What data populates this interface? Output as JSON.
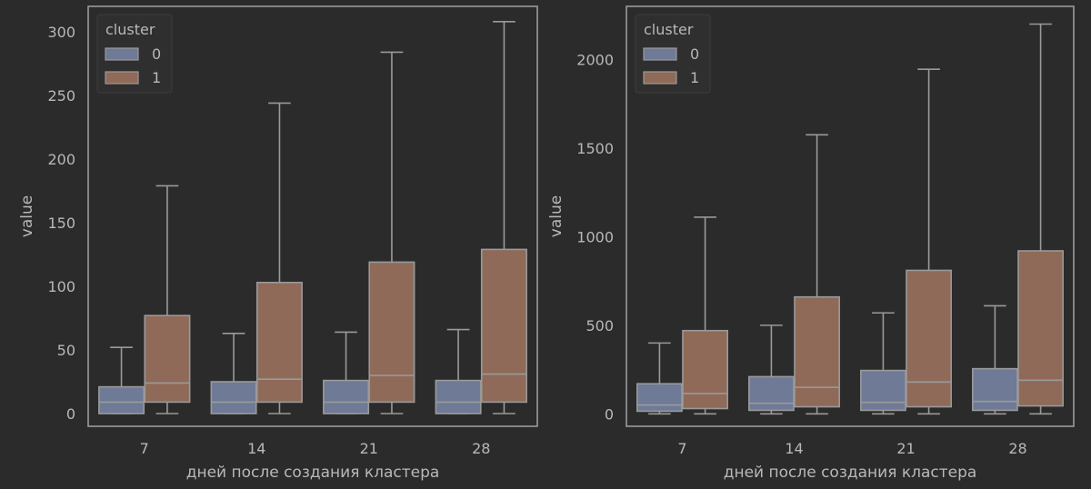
{
  "chart_data": [
    {
      "type": "boxplot",
      "xlabel": "дней после создания кластера",
      "ylabel": "value",
      "categories": [
        "7",
        "14",
        "21",
        "28"
      ],
      "ylim": [
        -10,
        320
      ],
      "yticks": [
        0,
        50,
        100,
        150,
        200,
        250,
        300
      ],
      "grid": false,
      "legend": {
        "title": "cluster",
        "position": "top-left"
      },
      "series": [
        {
          "name": "0",
          "color": "#6e7a96",
          "boxes": [
            {
              "whisker_low": 0,
              "q1": 0,
              "median": 9,
              "q3": 21,
              "whisker_high": 52
            },
            {
              "whisker_low": 0,
              "q1": 0,
              "median": 9,
              "q3": 25,
              "whisker_high": 63
            },
            {
              "whisker_low": 0,
              "q1": 0,
              "median": 9,
              "q3": 26,
              "whisker_high": 64
            },
            {
              "whisker_low": 0,
              "q1": 0,
              "median": 9,
              "q3": 26,
              "whisker_high": 66
            }
          ]
        },
        {
          "name": "1",
          "color": "#8f6a58",
          "boxes": [
            {
              "whisker_low": 0,
              "q1": 9,
              "median": 24,
              "q3": 77,
              "whisker_high": 179
            },
            {
              "whisker_low": 0,
              "q1": 9,
              "median": 27,
              "q3": 103,
              "whisker_high": 244
            },
            {
              "whisker_low": 0,
              "q1": 9,
              "median": 30,
              "q3": 119,
              "whisker_high": 284
            },
            {
              "whisker_low": 0,
              "q1": 9,
              "median": 31,
              "q3": 129,
              "whisker_high": 308
            }
          ]
        }
      ]
    },
    {
      "type": "boxplot",
      "xlabel": "дней после создания кластера",
      "ylabel": "value",
      "categories": [
        "7",
        "14",
        "21",
        "28"
      ],
      "ylim": [
        -70,
        2300
      ],
      "yticks": [
        0,
        500,
        1000,
        1500,
        2000
      ],
      "grid": false,
      "legend": {
        "title": "cluster",
        "position": "top-left"
      },
      "series": [
        {
          "name": "0",
          "color": "#6e7a96",
          "boxes": [
            {
              "whisker_low": 0,
              "q1": 15,
              "median": 50,
              "q3": 170,
              "whisker_high": 400
            },
            {
              "whisker_low": 0,
              "q1": 20,
              "median": 60,
              "q3": 210,
              "whisker_high": 500
            },
            {
              "whisker_low": 0,
              "q1": 20,
              "median": 65,
              "q3": 245,
              "whisker_high": 570
            },
            {
              "whisker_low": 0,
              "q1": 20,
              "median": 70,
              "q3": 255,
              "whisker_high": 610
            }
          ]
        },
        {
          "name": "1",
          "color": "#8f6a58",
          "boxes": [
            {
              "whisker_low": 0,
              "q1": 30,
              "median": 115,
              "q3": 470,
              "whisker_high": 1110
            },
            {
              "whisker_low": 0,
              "q1": 40,
              "median": 150,
              "q3": 660,
              "whisker_high": 1575
            },
            {
              "whisker_low": 0,
              "q1": 40,
              "median": 180,
              "q3": 810,
              "whisker_high": 1945
            },
            {
              "whisker_low": 0,
              "q1": 45,
              "median": 190,
              "q3": 920,
              "whisker_high": 2200
            }
          ]
        }
      ]
    }
  ]
}
